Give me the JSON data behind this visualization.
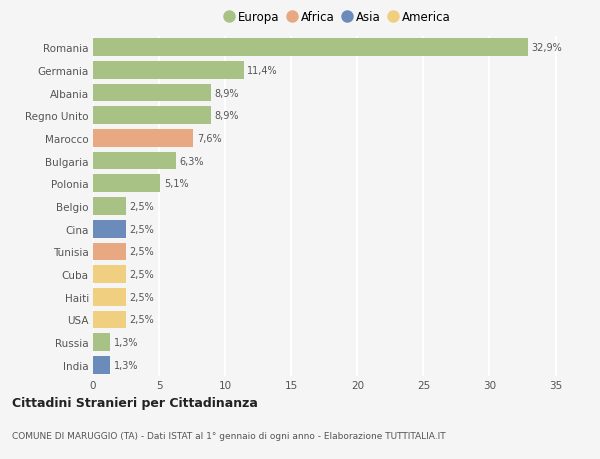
{
  "countries": [
    "Romania",
    "Germania",
    "Albania",
    "Regno Unito",
    "Marocco",
    "Bulgaria",
    "Polonia",
    "Belgio",
    "Cina",
    "Tunisia",
    "Cuba",
    "Haiti",
    "USA",
    "Russia",
    "India"
  ],
  "values": [
    32.9,
    11.4,
    8.9,
    8.9,
    7.6,
    6.3,
    5.1,
    2.5,
    2.5,
    2.5,
    2.5,
    2.5,
    2.5,
    1.3,
    1.3
  ],
  "labels": [
    "32,9%",
    "11,4%",
    "8,9%",
    "8,9%",
    "7,6%",
    "6,3%",
    "5,1%",
    "2,5%",
    "2,5%",
    "2,5%",
    "2,5%",
    "2,5%",
    "2,5%",
    "1,3%",
    "1,3%"
  ],
  "continents": [
    "Europa",
    "Europa",
    "Europa",
    "Europa",
    "Africa",
    "Europa",
    "Europa",
    "Europa",
    "Asia",
    "Africa",
    "America",
    "America",
    "America",
    "Europa",
    "Asia"
  ],
  "colors": {
    "Europa": "#a8c285",
    "Africa": "#e8a882",
    "Asia": "#6b8cba",
    "America": "#f0d080"
  },
  "legend_order": [
    "Europa",
    "Africa",
    "Asia",
    "America"
  ],
  "title": "Cittadini Stranieri per Cittadinanza",
  "subtitle": "COMUNE DI MARUGGIO (TA) - Dati ISTAT al 1° gennaio di ogni anno - Elaborazione TUTTITALIA.IT",
  "xlim": [
    0,
    37
  ],
  "xticks": [
    0,
    5,
    10,
    15,
    20,
    25,
    30,
    35
  ],
  "background_color": "#f5f5f5",
  "grid_color": "#ffffff",
  "bar_height": 0.78
}
